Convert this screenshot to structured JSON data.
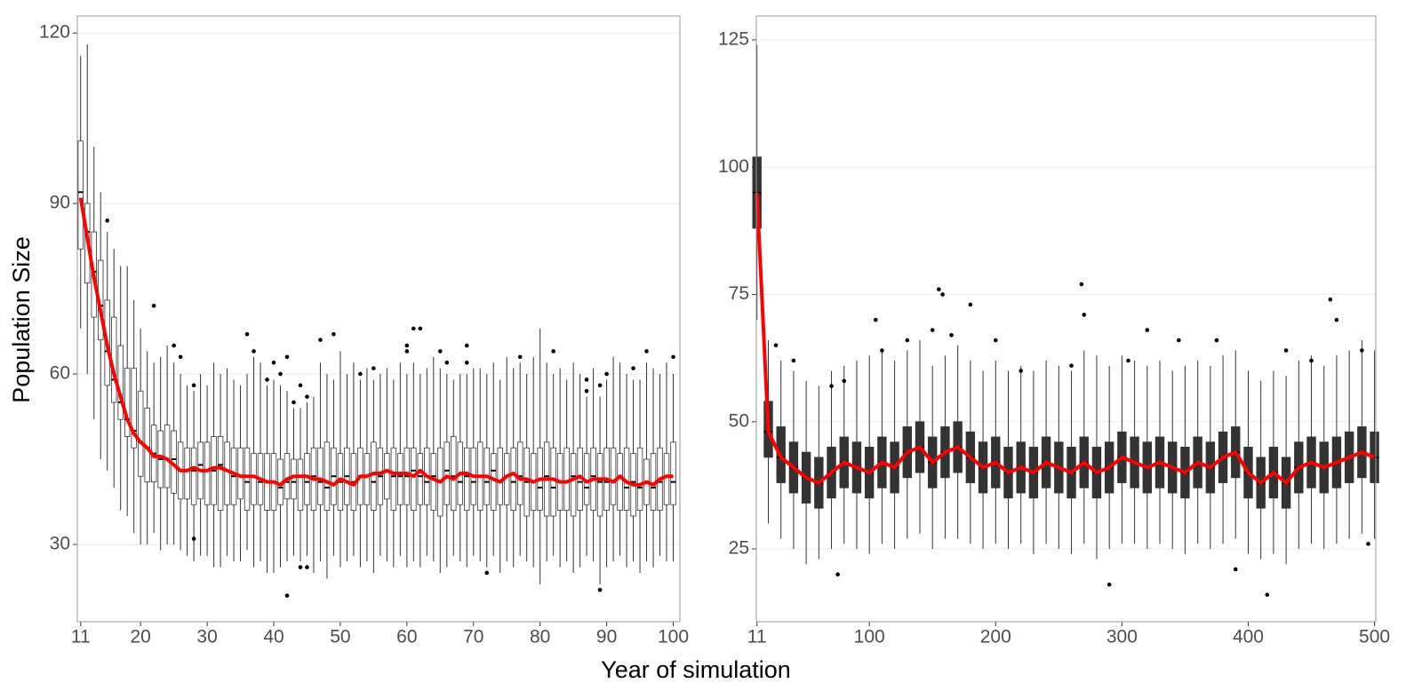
{
  "xlabel": "Year of simulation",
  "ylabel": "Population Size",
  "chart_data": [
    {
      "type": "boxplot",
      "x": [
        11,
        12,
        13,
        14,
        15,
        16,
        17,
        18,
        19,
        20,
        21,
        22,
        23,
        24,
        25,
        26,
        27,
        28,
        29,
        30,
        31,
        32,
        33,
        34,
        35,
        36,
        37,
        38,
        39,
        40,
        41,
        42,
        43,
        44,
        45,
        46,
        47,
        48,
        49,
        50,
        51,
        52,
        53,
        54,
        55,
        56,
        57,
        58,
        59,
        60,
        61,
        62,
        63,
        64,
        65,
        66,
        67,
        68,
        69,
        70,
        71,
        72,
        73,
        74,
        75,
        76,
        77,
        78,
        79,
        80,
        81,
        82,
        83,
        84,
        85,
        86,
        87,
        88,
        89,
        90,
        91,
        92,
        93,
        94,
        95,
        96,
        97,
        98,
        99,
        100
      ],
      "low": [
        68,
        60,
        52,
        45,
        43,
        40,
        36,
        35,
        32,
        30,
        30,
        32,
        29,
        30,
        30,
        29,
        28,
        27,
        28,
        28,
        26,
        26,
        28,
        27,
        27,
        29,
        26,
        27,
        25,
        25,
        26,
        27,
        28,
        27,
        28,
        25,
        27,
        24,
        28,
        26,
        27,
        28,
        26,
        27,
        25,
        28,
        27,
        26,
        28,
        26,
        27,
        26,
        28,
        27,
        25,
        26,
        28,
        27,
        26,
        28,
        27,
        26,
        28,
        25,
        27,
        26,
        28,
        27,
        26,
        23,
        27,
        28,
        26,
        27,
        25,
        26,
        28,
        27,
        23,
        26,
        27,
        28,
        26,
        27,
        25,
        27,
        26,
        28,
        27,
        27
      ],
      "q1": [
        82,
        76,
        70,
        66,
        58,
        55,
        52,
        49,
        47,
        42,
        41,
        41,
        40,
        40,
        39,
        38,
        38,
        37,
        38,
        37,
        37,
        36,
        37,
        37,
        38,
        36,
        37,
        37,
        36,
        36,
        37,
        38,
        38,
        36,
        37,
        36,
        37,
        36,
        37,
        36,
        37,
        36,
        37,
        37,
        36,
        37,
        38,
        36,
        37,
        37,
        36,
        37,
        37,
        36,
        35,
        37,
        36,
        37,
        36,
        37,
        36,
        37,
        36,
        37,
        37,
        36,
        37,
        35,
        36,
        36,
        35,
        35,
        36,
        36,
        35,
        36,
        37,
        36,
        35,
        36,
        37,
        36,
        36,
        35,
        36,
        37,
        36,
        36,
        37,
        37
      ],
      "median": [
        92,
        85,
        78,
        72,
        64,
        59,
        55,
        52,
        50,
        48,
        47,
        46,
        45,
        45,
        45,
        43,
        43,
        43,
        44,
        43,
        43,
        44,
        43,
        42,
        42,
        41,
        42,
        41,
        41,
        41,
        40,
        41,
        41,
        42,
        41,
        42,
        41,
        40,
        42,
        41,
        42,
        41,
        42,
        42,
        41,
        42,
        43,
        42,
        42,
        42,
        43,
        42,
        41,
        42,
        41,
        43,
        42,
        41,
        42,
        41,
        42,
        41,
        43,
        41,
        42,
        41,
        42,
        41,
        41,
        40,
        42,
        40,
        41,
        41,
        42,
        41,
        40,
        42,
        41,
        41,
        41,
        42,
        40,
        41,
        40,
        41,
        40,
        41,
        42,
        41
      ],
      "q3": [
        101,
        90,
        85,
        80,
        73,
        70,
        65,
        61,
        61,
        57,
        54,
        51,
        50,
        51,
        50,
        48,
        47,
        47,
        48,
        48,
        49,
        49,
        48,
        47,
        47,
        47,
        46,
        46,
        46,
        46,
        45,
        46,
        45,
        45,
        46,
        47,
        47,
        48,
        47,
        46,
        47,
        46,
        47,
        46,
        48,
        47,
        46,
        47,
        46,
        47,
        47,
        46,
        47,
        46,
        47,
        48,
        49,
        48,
        47,
        47,
        48,
        47,
        46,
        47,
        46,
        47,
        48,
        47,
        46,
        47,
        48,
        47,
        46,
        47,
        46,
        47,
        46,
        47,
        46,
        47,
        47,
        46,
        47,
        46,
        47,
        45,
        46,
        47,
        46,
        48
      ],
      "high": [
        116,
        118,
        100,
        92,
        85,
        82,
        79,
        79,
        73,
        68,
        64,
        62,
        63,
        65,
        62,
        60,
        58,
        57,
        60,
        58,
        62,
        60,
        61,
        59,
        58,
        60,
        63,
        62,
        58,
        59,
        58,
        57,
        54,
        54,
        55,
        56,
        62,
        60,
        59,
        64,
        60,
        62,
        59,
        61,
        59,
        60,
        61,
        59,
        62,
        60,
        62,
        60,
        61,
        63,
        61,
        60,
        59,
        60,
        60,
        61,
        61,
        60,
        62,
        59,
        63,
        61,
        62,
        60,
        63,
        68,
        62,
        60,
        61,
        59,
        62,
        60,
        56,
        61,
        56,
        59,
        63,
        62,
        60,
        59,
        59,
        62,
        61,
        60,
        62,
        60
      ],
      "mean": [
        91,
        84,
        77,
        71,
        65,
        60,
        56,
        52,
        49.5,
        48,
        47,
        45.5,
        45.5,
        45,
        44,
        43,
        43,
        43.5,
        43,
        43,
        43.5,
        43.5,
        43,
        42.5,
        42,
        42,
        42,
        41.5,
        41,
        41,
        40.5,
        41.5,
        42,
        42,
        42,
        41.5,
        41.5,
        41,
        40.5,
        41.5,
        41,
        40.5,
        42,
        42,
        42.5,
        42.5,
        43,
        42.5,
        42.5,
        42.5,
        42,
        43,
        42,
        41.5,
        41,
        42,
        41.5,
        42.5,
        42.5,
        42,
        42,
        42,
        41.5,
        41,
        42,
        42.5,
        41.5,
        41.5,
        41,
        41.5,
        41.5,
        41.5,
        41,
        41,
        41.5,
        42,
        41,
        41.5,
        41.5,
        41.5,
        41,
        42,
        41,
        40.5,
        40.5,
        41,
        40.5,
        41.5,
        42,
        42
      ],
      "mean_color": "#ff0000",
      "box_fill": "#ffffff",
      "box_stroke": "#333333",
      "outliers": {
        "x": [
          15,
          22,
          25,
          26,
          28,
          28,
          36,
          37,
          39,
          40,
          41,
          42,
          42,
          43,
          44,
          44,
          45,
          45,
          47,
          49,
          53,
          55,
          60,
          60,
          61,
          62,
          65,
          66,
          69,
          69,
          72,
          77,
          82,
          87,
          87,
          89,
          89,
          90,
          94,
          96,
          100
        ],
        "y": [
          87,
          72,
          65,
          63,
          31,
          58,
          67,
          64,
          59,
          62,
          60,
          63,
          21,
          55,
          58,
          26,
          26,
          56,
          66,
          67,
          60,
          61,
          64,
          65,
          68,
          68,
          64,
          62,
          65,
          62,
          25,
          63,
          64,
          59,
          57,
          58,
          22,
          60,
          61,
          64,
          63
        ]
      },
      "xlim": [
        10.5,
        101
      ],
      "ylim": [
        16.4,
        123
      ],
      "xticks": [
        11,
        20,
        30,
        40,
        50,
        60,
        70,
        80,
        90,
        100
      ],
      "yticks": [
        30,
        60,
        90,
        120
      ],
      "grid": true
    },
    {
      "type": "boxplot",
      "x": [
        11,
        20,
        30,
        40,
        50,
        60,
        70,
        80,
        90,
        100,
        110,
        120,
        130,
        140,
        150,
        160,
        170,
        180,
        190,
        200,
        210,
        220,
        230,
        240,
        250,
        260,
        270,
        280,
        290,
        300,
        310,
        320,
        330,
        340,
        350,
        360,
        370,
        380,
        390,
        400,
        410,
        420,
        430,
        440,
        450,
        460,
        470,
        480,
        490,
        500
      ],
      "low": [
        70,
        30,
        27,
        25,
        22,
        23,
        25,
        26,
        25,
        24,
        26,
        25,
        27,
        28,
        25,
        27,
        27,
        26,
        25,
        26,
        25,
        26,
        24,
        26,
        25,
        24,
        26,
        23,
        25,
        26,
        26,
        25,
        26,
        25,
        24,
        26,
        25,
        26,
        27,
        24,
        23,
        24,
        22,
        25,
        26,
        25,
        26,
        27,
        28,
        27
      ],
      "q1": [
        88,
        43,
        38,
        36,
        34,
        33,
        35,
        37,
        36,
        35,
        37,
        36,
        39,
        40,
        37,
        39,
        40,
        38,
        36,
        37,
        35,
        36,
        35,
        37,
        36,
        35,
        37,
        35,
        36,
        38,
        37,
        36,
        37,
        36,
        35,
        37,
        36,
        38,
        39,
        35,
        33,
        35,
        33,
        36,
        37,
        36,
        37,
        38,
        39,
        38
      ],
      "median": [
        95,
        48,
        43,
        41,
        39,
        38,
        40,
        42,
        41,
        40,
        42,
        41,
        44,
        45,
        42,
        44,
        45,
        43,
        41,
        42,
        40,
        41,
        40,
        42,
        41,
        40,
        42,
        40,
        41,
        43,
        42,
        41,
        42,
        41,
        40,
        42,
        41,
        43,
        44,
        40,
        38,
        40,
        38,
        41,
        42,
        41,
        42,
        43,
        44,
        43
      ],
      "q3": [
        102,
        54,
        49,
        46,
        44,
        43,
        45,
        47,
        46,
        45,
        47,
        46,
        49,
        50,
        47,
        49,
        50,
        48,
        46,
        47,
        45,
        46,
        45,
        47,
        46,
        45,
        47,
        45,
        46,
        48,
        47,
        46,
        47,
        46,
        45,
        47,
        46,
        48,
        49,
        45,
        43,
        45,
        43,
        46,
        47,
        46,
        47,
        48,
        49,
        48
      ],
      "high": [
        124,
        66,
        62,
        60,
        58,
        57,
        60,
        61,
        62,
        63,
        64,
        62,
        64,
        66,
        61,
        63,
        65,
        62,
        60,
        62,
        60,
        61,
        60,
        62,
        61,
        60,
        64,
        63,
        61,
        63,
        62,
        61,
        62,
        60,
        61,
        62,
        61,
        63,
        64,
        60,
        58,
        60,
        59,
        62,
        63,
        61,
        63,
        64,
        66,
        64
      ],
      "mean": [
        95,
        48,
        43,
        41,
        39,
        38,
        40,
        42,
        41,
        40,
        42,
        41,
        44,
        45,
        42,
        44,
        45,
        43,
        41,
        42,
        40,
        41,
        40,
        42,
        41,
        40,
        42,
        40,
        41,
        43,
        42,
        41,
        42,
        41,
        40,
        42,
        41,
        43,
        44,
        40,
        38,
        40,
        38,
        41,
        42,
        41,
        42,
        43,
        44,
        43
      ],
      "mean_color": "#ff0000",
      "box_fill": "#333333",
      "box_stroke": "#333333",
      "outliers": {
        "x": [
          26,
          40,
          70,
          75,
          80,
          105,
          110,
          130,
          150,
          155,
          158,
          165,
          180,
          200,
          220,
          260,
          268,
          270,
          290,
          305,
          320,
          345,
          375,
          390,
          415,
          430,
          450,
          465,
          470,
          490,
          495
        ],
        "y": [
          65,
          62,
          57,
          20,
          58,
          70,
          64,
          66,
          68,
          76,
          75,
          67,
          73,
          66,
          60,
          61,
          77,
          71,
          18,
          62,
          68,
          66,
          66,
          21,
          16,
          64,
          62,
          74,
          70,
          64,
          26
        ]
      },
      "xlim": [
        10.5,
        501
      ],
      "ylim": [
        10.7,
        129.7
      ],
      "xticks": [
        11,
        100,
        200,
        300,
        400,
        500
      ],
      "yticks": [
        25,
        50,
        75,
        100,
        125
      ],
      "grid": true
    }
  ]
}
